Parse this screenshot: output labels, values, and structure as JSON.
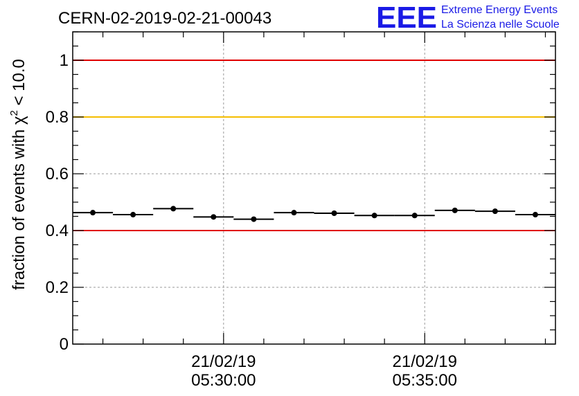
{
  "chart_data": {
    "type": "scatter",
    "title": "CERN-02-2019-02-21-00043",
    "ylabel_main": "fraction of events with χ",
    "ylabel_sup": "2",
    "ylabel_rest": " < 10.0",
    "ylim": [
      0,
      1.1
    ],
    "yticks": [
      0,
      0.2,
      0.4,
      0.6,
      0.8,
      1
    ],
    "ytick_labels": [
      "0",
      "0.2",
      "0.4",
      "0.6",
      "0.8",
      "1"
    ],
    "xlim_minutes": [
      0,
      12
    ],
    "x_major_ticks": [
      {
        "minute": 3.75,
        "date": "21/02/19",
        "time": "05:30:00"
      },
      {
        "minute": 8.75,
        "date": "21/02/19",
        "time": "05:35:00"
      }
    ],
    "x_minor_ticks": [
      0.75,
      1.75,
      2.75,
      4.75,
      5.75,
      6.75,
      7.75,
      9.75,
      10.75,
      11.75
    ],
    "reference_lines": [
      {
        "y": 1.0,
        "color": "#e00000"
      },
      {
        "y": 0.8,
        "color": "#f5bd00"
      },
      {
        "y": 0.4,
        "color": "#e00000"
      }
    ],
    "grid": true,
    "points": [
      {
        "x": 0.5,
        "xerr": 0.5,
        "y": 0.463
      },
      {
        "x": 1.5,
        "xerr": 0.5,
        "y": 0.456
      },
      {
        "x": 2.5,
        "xerr": 0.5,
        "y": 0.477
      },
      {
        "x": 3.5,
        "xerr": 0.5,
        "y": 0.448
      },
      {
        "x": 4.5,
        "xerr": 0.5,
        "y": 0.44
      },
      {
        "x": 5.5,
        "xerr": 0.5,
        "y": 0.463
      },
      {
        "x": 6.5,
        "xerr": 0.5,
        "y": 0.461
      },
      {
        "x": 7.5,
        "xerr": 0.5,
        "y": 0.453
      },
      {
        "x": 8.5,
        "xerr": 0.5,
        "y": 0.453
      },
      {
        "x": 9.5,
        "xerr": 0.5,
        "y": 0.471
      },
      {
        "x": 10.5,
        "xerr": 0.5,
        "y": 0.468
      },
      {
        "x": 11.5,
        "xerr": 0.5,
        "y": 0.456
      }
    ]
  },
  "logo": {
    "mark": "EEE",
    "line1": "Extreme Energy Events",
    "line2": "La Scienza nelle Scuole",
    "color": "#1a1ae6"
  }
}
